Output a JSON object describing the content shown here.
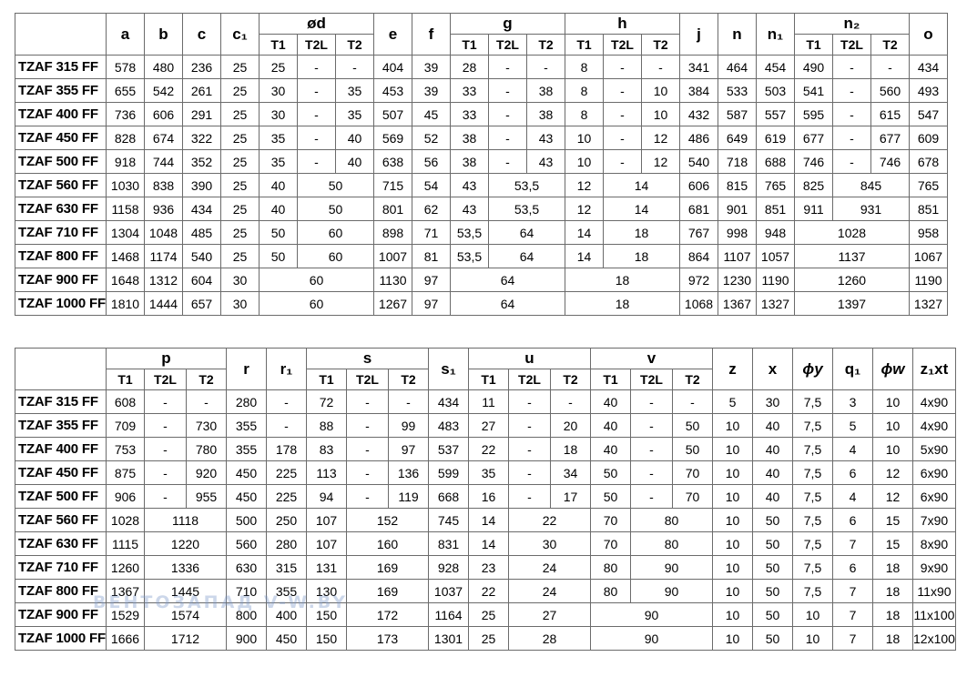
{
  "table1": {
    "headers": {
      "a": "a",
      "b": "b",
      "c": "c",
      "c1": "c₁",
      "d": "ød",
      "e": "e",
      "f": "f",
      "g": "g",
      "h": "h",
      "j": "j",
      "n": "n",
      "n1": "n₁",
      "n2": "n₂",
      "o": "o",
      "T1": "T1",
      "T2L": "T2L",
      "T2": "T2"
    },
    "rows": [
      [
        "TZAF 315 FF",
        "578",
        "480",
        "236",
        "25",
        "25",
        "-",
        "-",
        "404",
        "39",
        "28",
        "-",
        "-",
        "8",
        "-",
        "-",
        "341",
        "464",
        "454",
        "490",
        "-",
        "-",
        "434"
      ],
      [
        "TZAF 355 FF",
        "655",
        "542",
        "261",
        "25",
        "30",
        "-",
        "35",
        "453",
        "39",
        "33",
        "-",
        "38",
        "8",
        "-",
        "10",
        "384",
        "533",
        "503",
        "541",
        "-",
        "560",
        "493"
      ],
      [
        "TZAF 400 FF",
        "736",
        "606",
        "291",
        "25",
        "30",
        "-",
        "35",
        "507",
        "45",
        "33",
        "-",
        "38",
        "8",
        "-",
        "10",
        "432",
        "587",
        "557",
        "595",
        "-",
        "615",
        "547"
      ],
      [
        "TZAF 450 FF",
        "828",
        "674",
        "322",
        "25",
        "35",
        "-",
        "40",
        "569",
        "52",
        "38",
        "-",
        "43",
        "10",
        "-",
        "12",
        "486",
        "649",
        "619",
        "677",
        "-",
        "677",
        "609"
      ],
      [
        "TZAF 500 FF",
        "918",
        "744",
        "352",
        "25",
        "35",
        "-",
        "40",
        "638",
        "56",
        "38",
        "-",
        "43",
        "10",
        "-",
        "12",
        "540",
        "718",
        "688",
        "746",
        "-",
        "746",
        "678"
      ],
      [
        "TZAF 560 FF",
        "1030",
        "838",
        "390",
        "25",
        "40",
        "50",
        "715",
        "54",
        "43",
        "53,5",
        "12",
        "14",
        "606",
        "815",
        "765",
        "825",
        "845",
        "765"
      ],
      [
        "TZAF 630 FF",
        "1158",
        "936",
        "434",
        "25",
        "40",
        "50",
        "801",
        "62",
        "43",
        "53,5",
        "12",
        "14",
        "681",
        "901",
        "851",
        "911",
        "931",
        "851"
      ],
      [
        "TZAF 710 FF",
        "1304",
        "1048",
        "485",
        "25",
        "50",
        "60",
        "898",
        "71",
        "53,5",
        "64",
        "14",
        "18",
        "767",
        "998",
        "948",
        "1028",
        "958"
      ],
      [
        "TZAF 800 FF",
        "1468",
        "1174",
        "540",
        "25",
        "50",
        "60",
        "1007",
        "81",
        "53,5",
        "64",
        "14",
        "18",
        "864",
        "1107",
        "1057",
        "1137",
        "1067"
      ],
      [
        "TZAF 900 FF",
        "1648",
        "1312",
        "604",
        "30",
        "60",
        "1130",
        "97",
        "64",
        "18",
        "972",
        "1230",
        "1190",
        "1260",
        "1190"
      ],
      [
        "TZAF 1000 FF",
        "1810",
        "1444",
        "657",
        "30",
        "60",
        "1267",
        "97",
        "64",
        "18",
        "1068",
        "1367",
        "1327",
        "1397",
        "1327"
      ]
    ]
  },
  "table2": {
    "headers": {
      "p": "p",
      "r": "r",
      "r1": "r₁",
      "s": "s",
      "s1": "s₁",
      "u": "u",
      "v": "v",
      "z": "z",
      "x": "x",
      "y": "ϕy",
      "q1": "q₁",
      "w": "ϕw",
      "z1xt": "z₁xt",
      "T1": "T1",
      "T2L": "T2L",
      "T2": "T2"
    },
    "rows": [
      [
        "TZAF 315 FF",
        "608",
        "-",
        "-",
        "280",
        "-",
        "72",
        "-",
        "-",
        "434",
        "11",
        "-",
        "-",
        "40",
        "-",
        "-",
        "5",
        "30",
        "7,5",
        "3",
        "10",
        "4x90"
      ],
      [
        "TZAF 355 FF",
        "709",
        "-",
        "730",
        "355",
        "-",
        "88",
        "-",
        "99",
        "483",
        "27",
        "-",
        "20",
        "40",
        "-",
        "50",
        "10",
        "40",
        "7,5",
        "5",
        "10",
        "4x90"
      ],
      [
        "TZAF 400 FF",
        "753",
        "-",
        "780",
        "355",
        "178",
        "83",
        "-",
        "97",
        "537",
        "22",
        "-",
        "18",
        "40",
        "-",
        "50",
        "10",
        "40",
        "7,5",
        "4",
        "10",
        "5x90"
      ],
      [
        "TZAF 450 FF",
        "875",
        "-",
        "920",
        "450",
        "225",
        "113",
        "-",
        "136",
        "599",
        "35",
        "-",
        "34",
        "50",
        "-",
        "70",
        "10",
        "40",
        "7,5",
        "6",
        "12",
        "6x90"
      ],
      [
        "TZAF 500 FF",
        "906",
        "-",
        "955",
        "450",
        "225",
        "94",
        "-",
        "119",
        "668",
        "16",
        "-",
        "17",
        "50",
        "-",
        "70",
        "10",
        "40",
        "7,5",
        "4",
        "12",
        "6x90"
      ],
      [
        "TZAF 560 FF",
        "1028",
        "1118",
        "500",
        "250",
        "107",
        "152",
        "745",
        "14",
        "22",
        "70",
        "80",
        "10",
        "50",
        "7,5",
        "6",
        "15",
        "7x90"
      ],
      [
        "TZAF 630 FF",
        "1115",
        "1220",
        "560",
        "280",
        "107",
        "160",
        "831",
        "14",
        "30",
        "70",
        "80",
        "10",
        "50",
        "7,5",
        "7",
        "15",
        "8x90"
      ],
      [
        "TZAF 710 FF",
        "1260",
        "1336",
        "630",
        "315",
        "131",
        "169",
        "928",
        "23",
        "24",
        "80",
        "90",
        "10",
        "50",
        "7,5",
        "6",
        "18",
        "9x90"
      ],
      [
        "TZAF 800 FF",
        "1367",
        "1445",
        "710",
        "355",
        "130",
        "169",
        "1037",
        "22",
        "24",
        "80",
        "90",
        "10",
        "50",
        "7,5",
        "7",
        "18",
        "11x90"
      ],
      [
        "TZAF 900 FF",
        "1529",
        "1574",
        "800",
        "400",
        "150",
        "172",
        "1164",
        "25",
        "27",
        "90",
        "10",
        "50",
        "10",
        "7",
        "18",
        "11x100"
      ],
      [
        "TZAF 1000 FF",
        "1666",
        "1712",
        "900",
        "450",
        "150",
        "173",
        "1301",
        "25",
        "28",
        "90",
        "10",
        "50",
        "10",
        "7",
        "18",
        "12x100"
      ]
    ]
  },
  "watermark": "ВЕНТОЗАПАД   V-W.BY"
}
